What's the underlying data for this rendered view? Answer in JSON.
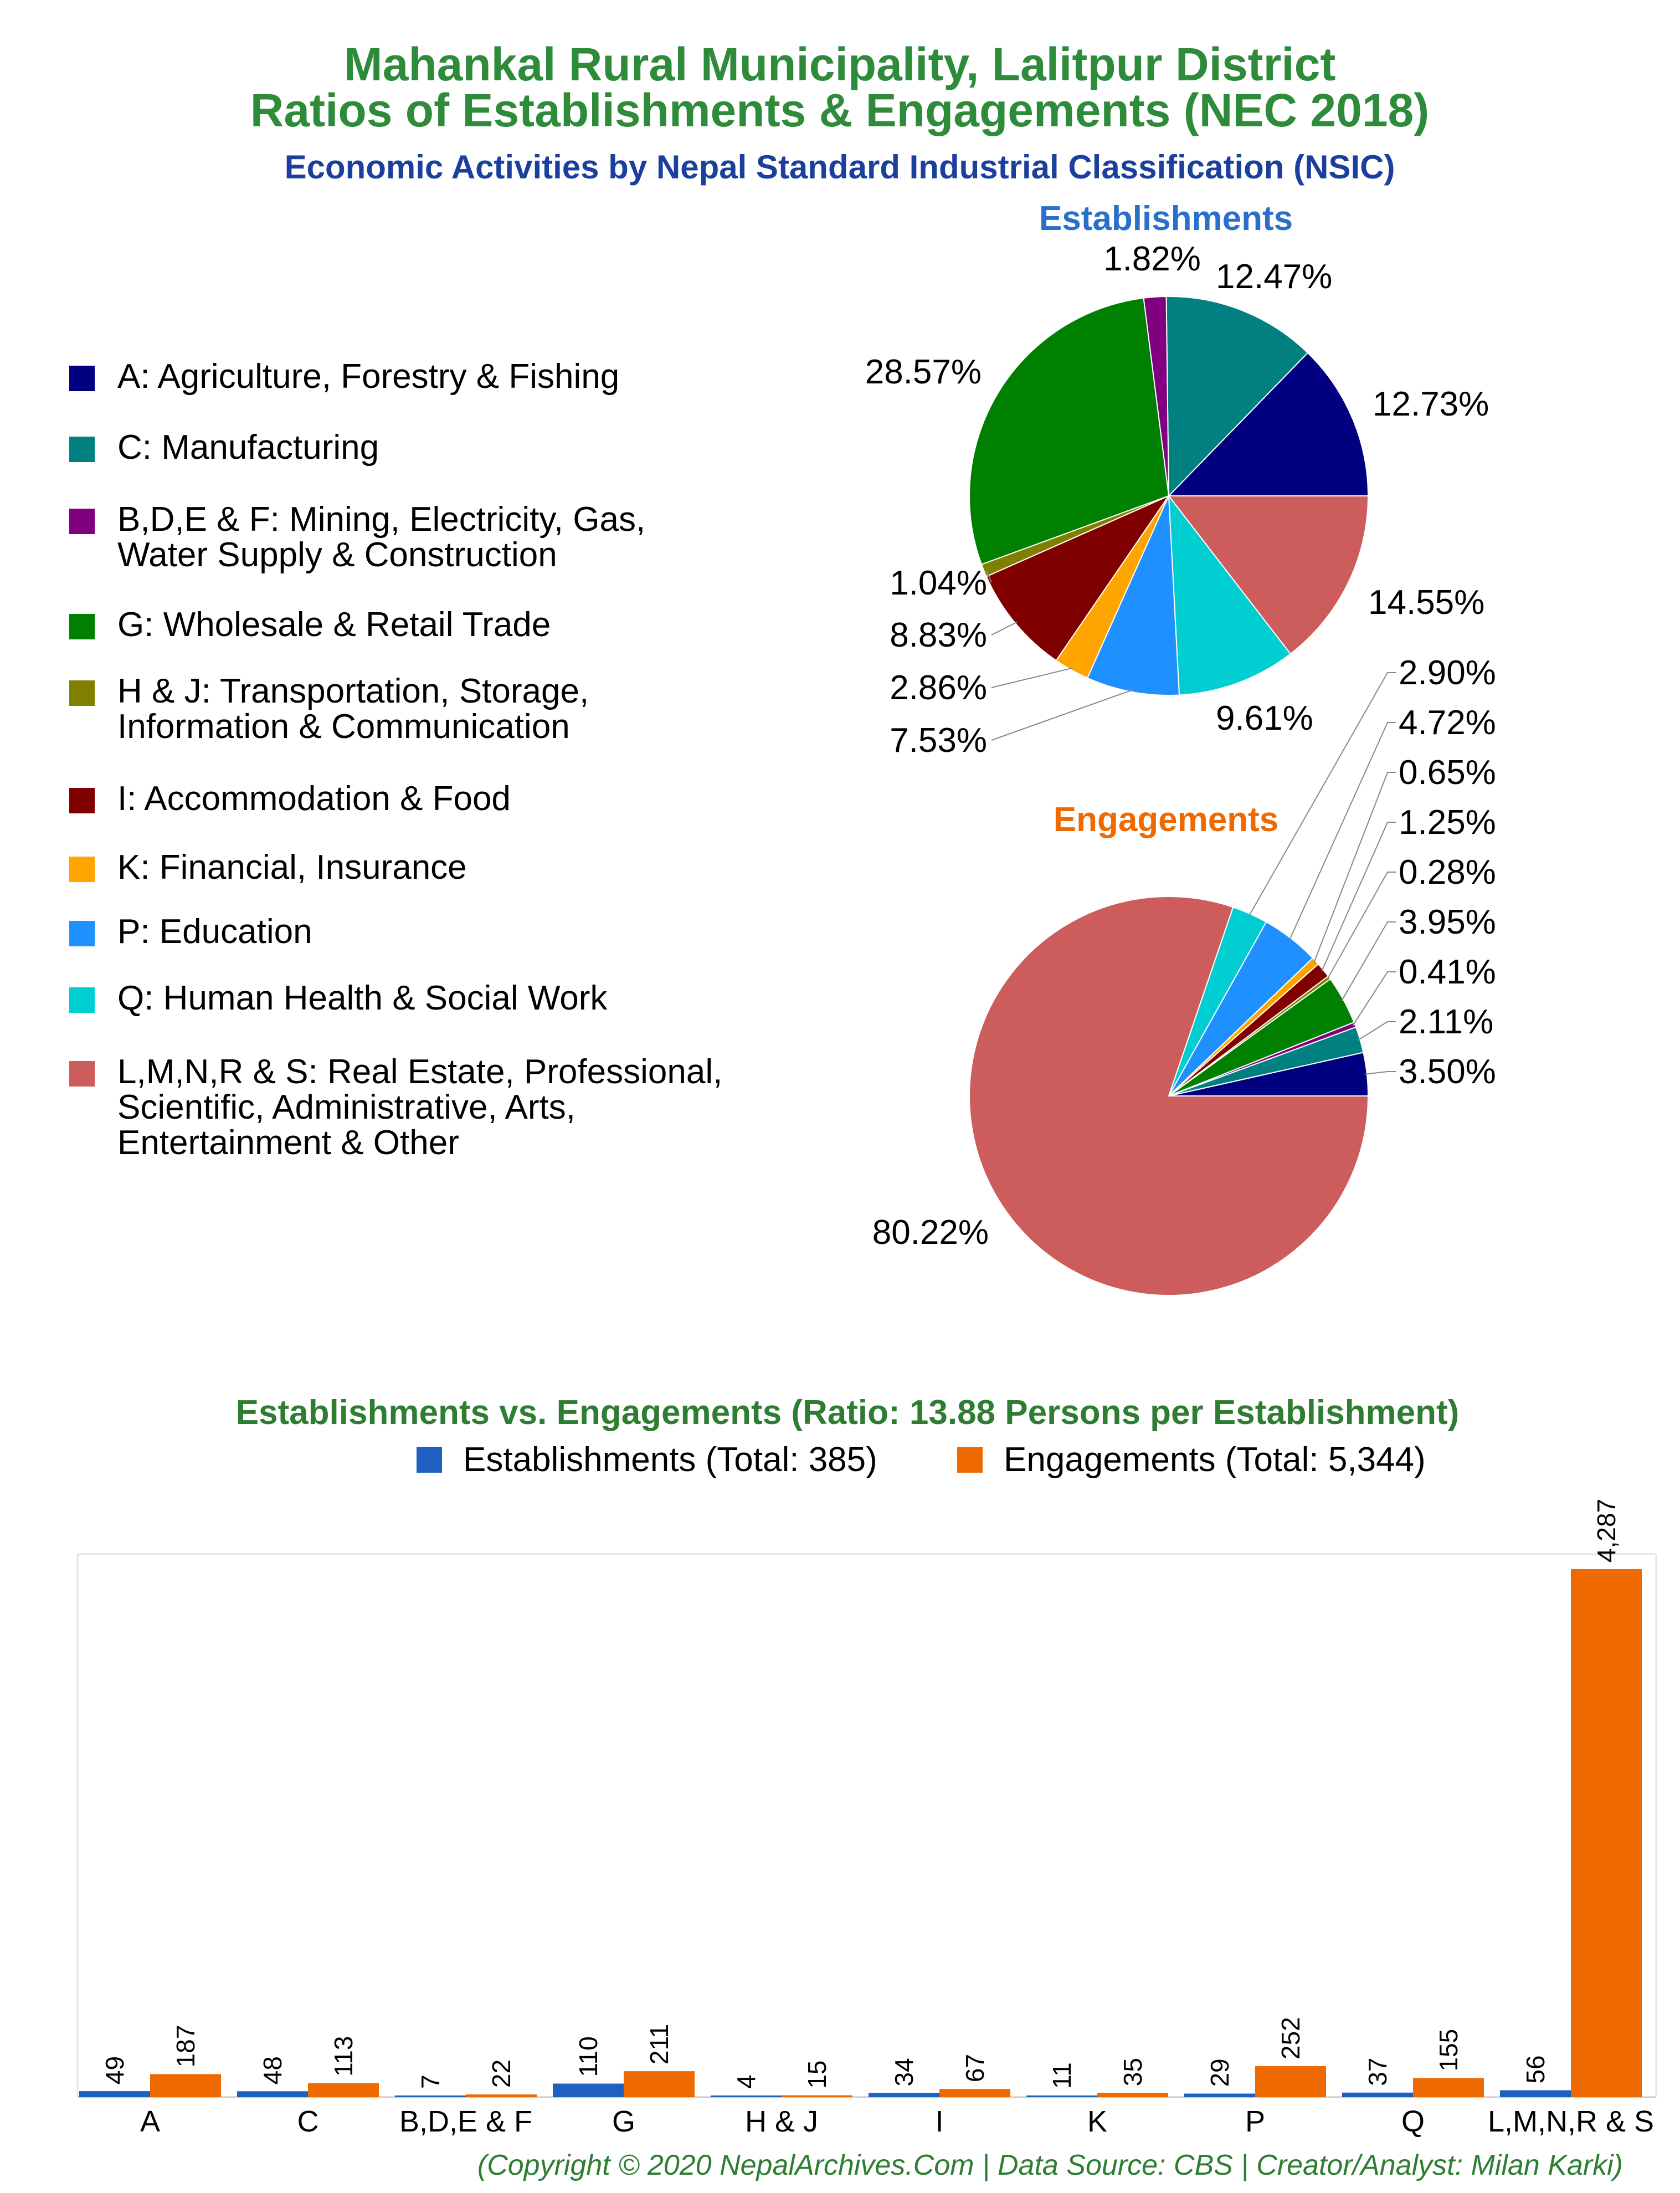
{
  "title_line1": "Mahankal Rural Municipality, Lalitpur District",
  "title_line2": "Ratios of Establishments & Engagements (NEC 2018)",
  "subtitle": "Economic Activities by Nepal Standard Industrial Classification (NSIC)",
  "colors": {
    "A": "#000080",
    "C": "#008080",
    "BDEF": "#800080",
    "G": "#008000",
    "HJ": "#808000",
    "I": "#800000",
    "K": "#ffa500",
    "P": "#1e90ff",
    "Q": "#00ced1",
    "LMNRS": "#cd5c5c",
    "establishments_bar": "#1f5fc2",
    "engagements_bar": "#ee6a00"
  },
  "legend": [
    {
      "key": "A",
      "lines": [
        "A: Agriculture, Forestry & Fishing"
      ]
    },
    {
      "key": "C",
      "lines": [
        "C: Manufacturing"
      ]
    },
    {
      "key": "BDEF",
      "lines": [
        "B,D,E & F: Mining, Electricity, Gas,",
        "Water Supply & Construction"
      ]
    },
    {
      "key": "G",
      "lines": [
        "G: Wholesale & Retail Trade"
      ]
    },
    {
      "key": "HJ",
      "lines": [
        "H & J: Transportation, Storage,",
        "Information & Communication"
      ]
    },
    {
      "key": "I",
      "lines": [
        "I: Accommodation & Food"
      ]
    },
    {
      "key": "K",
      "lines": [
        "K: Financial, Insurance"
      ]
    },
    {
      "key": "P",
      "lines": [
        "P: Education"
      ]
    },
    {
      "key": "Q",
      "lines": [
        "Q: Human Health & Social Work"
      ]
    },
    {
      "key": "LMNRS",
      "lines": [
        "L,M,N,R & S: Real Estate, Professional,",
        "Scientific, Administrative, Arts,",
        "Entertainment & Other"
      ]
    }
  ],
  "chart_data": [
    {
      "type": "pie",
      "title": "Establishments",
      "slices": [
        {
          "key": "A",
          "value": 12.73,
          "label": "12.73%"
        },
        {
          "key": "C",
          "value": 12.47,
          "label": "12.47%"
        },
        {
          "key": "BDEF",
          "value": 1.82,
          "label": "1.82%"
        },
        {
          "key": "G",
          "value": 28.57,
          "label": "28.57%"
        },
        {
          "key": "HJ",
          "value": 1.04,
          "label": "1.04%"
        },
        {
          "key": "I",
          "value": 8.83,
          "label": "8.83%"
        },
        {
          "key": "K",
          "value": 2.86,
          "label": "2.86%"
        },
        {
          "key": "P",
          "value": 7.53,
          "label": "7.53%"
        },
        {
          "key": "Q",
          "value": 9.61,
          "label": "9.61%"
        },
        {
          "key": "LMNRS",
          "value": 14.55,
          "label": "14.55%"
        }
      ]
    },
    {
      "type": "pie",
      "title": "Engagements",
      "slices": [
        {
          "key": "A",
          "value": 3.5,
          "label": "3.50%"
        },
        {
          "key": "C",
          "value": 2.11,
          "label": "2.11%"
        },
        {
          "key": "BDEF",
          "value": 0.41,
          "label": "0.41%"
        },
        {
          "key": "G",
          "value": 3.95,
          "label": "3.95%"
        },
        {
          "key": "HJ",
          "value": 0.28,
          "label": "0.28%"
        },
        {
          "key": "I",
          "value": 1.25,
          "label": "1.25%"
        },
        {
          "key": "K",
          "value": 0.65,
          "label": "0.65%"
        },
        {
          "key": "P",
          "value": 4.72,
          "label": "4.72%"
        },
        {
          "key": "Q",
          "value": 2.9,
          "label": "2.90%"
        },
        {
          "key": "LMNRS",
          "value": 80.22,
          "label": "80.22%"
        }
      ]
    },
    {
      "type": "bar",
      "title": "Establishments vs. Engagements (Ratio: 13.88 Persons per Establishment)",
      "categories": [
        "A",
        "C",
        "B,D,E & F",
        "G",
        "H & J",
        "I",
        "K",
        "P",
        "Q",
        "L,M,N,R & S"
      ],
      "series": [
        {
          "name": "Establishments (Total: 385)",
          "values": [
            49,
            48,
            7,
            110,
            4,
            34,
            11,
            29,
            37,
            56
          ],
          "labels": [
            "49",
            "48",
            "7",
            "110",
            "4",
            "34",
            "11",
            "29",
            "37",
            "56"
          ]
        },
        {
          "name": "Engagements (Total: 5,344)",
          "values": [
            187,
            113,
            22,
            211,
            15,
            67,
            35,
            252,
            155,
            4287
          ],
          "labels": [
            "187",
            "113",
            "22",
            "211",
            "15",
            "67",
            "35",
            "252",
            "155",
            "4,287"
          ]
        }
      ],
      "ylim": [
        0,
        4287
      ],
      "legend_position": "top"
    }
  ],
  "copyright": "(Copyright © 2020 NepalArchives.Com | Data Source: CBS | Creator/Analyst: Milan Karki)"
}
